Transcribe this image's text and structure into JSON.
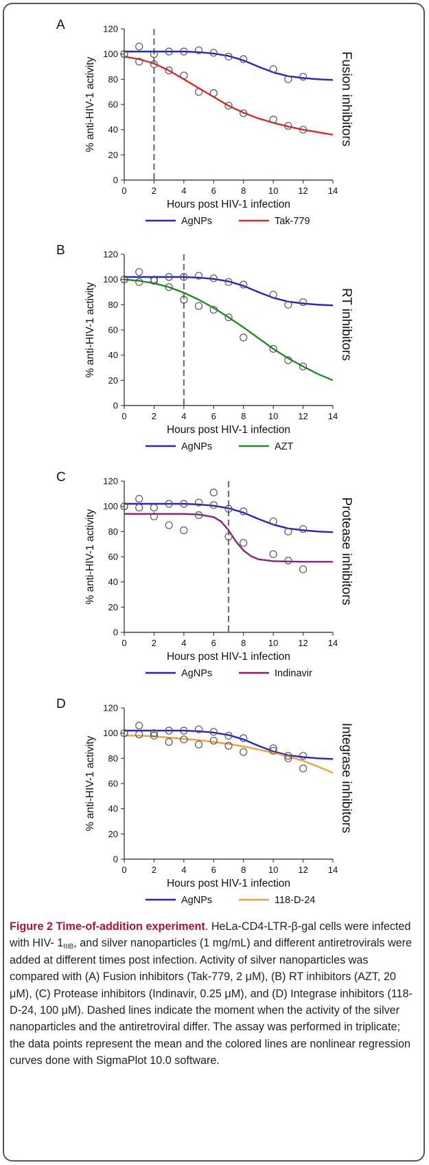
{
  "chart_data": [
    {
      "type": "scatter",
      "panel_letter": "A",
      "side_label": "Fusion inhibitors",
      "xlabel": "Hours post HIV-1 infection",
      "ylabel": "% anti-HIV-1 activity",
      "xlim": [
        0,
        14
      ],
      "ylim": [
        0,
        120
      ],
      "xticks": [
        0,
        2,
        4,
        6,
        8,
        10,
        12,
        14
      ],
      "yticks": [
        0,
        20,
        40,
        60,
        80,
        100,
        120
      ],
      "dashed_line_x": 2,
      "legend_position": "bottom",
      "series": [
        {
          "name": "AgNPs",
          "color": "#2323c8",
          "x": [
            0,
            1,
            2,
            3,
            4,
            5,
            6,
            7,
            8,
            10,
            11,
            12
          ],
          "y": [
            100,
            106,
            100,
            102,
            102,
            103,
            101,
            98,
            96,
            88,
            80,
            82
          ],
          "curve_x": [
            0,
            2,
            4,
            5,
            6,
            7,
            8,
            9,
            10,
            11,
            12,
            13,
            14
          ],
          "curve_y": [
            102,
            102,
            102,
            101.5,
            100.5,
            98.5,
            95,
            90,
            85.5,
            82.5,
            81,
            80,
            79.5
          ]
        },
        {
          "name": "Tak-779",
          "color": "#dc2828",
          "x": [
            0,
            1,
            2,
            3,
            4,
            5,
            6,
            7,
            8,
            10,
            11,
            12
          ],
          "y": [
            100,
            94,
            92,
            87,
            83,
            70,
            69,
            59,
            53,
            48,
            43,
            40
          ],
          "curve_x": [
            0,
            1,
            2,
            3,
            4,
            5,
            6,
            7,
            8,
            9,
            10,
            11,
            12,
            13,
            14
          ],
          "curve_y": [
            98,
            96,
            92.5,
            87,
            80,
            73,
            66,
            59,
            53.5,
            49,
            45.5,
            42.5,
            40,
            38,
            36
          ]
        }
      ]
    },
    {
      "type": "scatter",
      "panel_letter": "B",
      "side_label": "RT inhibitors",
      "xlabel": "Hours post HIV-1 infection",
      "ylabel": "% anti-HIV-1 activity",
      "xlim": [
        0,
        14
      ],
      "ylim": [
        0,
        120
      ],
      "xticks": [
        0,
        2,
        4,
        6,
        8,
        10,
        12,
        14
      ],
      "yticks": [
        0,
        20,
        40,
        60,
        80,
        100,
        120
      ],
      "dashed_line_x": 4,
      "legend_position": "bottom",
      "series": [
        {
          "name": "AgNPs",
          "color": "#2323c8",
          "x": [
            0,
            1,
            2,
            3,
            4,
            5,
            6,
            7,
            8,
            10,
            11,
            12
          ],
          "y": [
            100,
            106,
            100,
            102,
            102,
            103,
            101,
            98,
            96,
            88,
            80,
            82
          ],
          "curve_x": [
            0,
            2,
            4,
            5,
            6,
            7,
            8,
            9,
            10,
            11,
            12,
            13,
            14
          ],
          "curve_y": [
            102,
            102,
            102,
            101.5,
            100.5,
            98.5,
            95,
            90,
            85.5,
            82.5,
            81,
            80,
            79.5
          ]
        },
        {
          "name": "AZT",
          "color": "#1e8c23",
          "x": [
            0,
            1,
            2,
            3,
            4,
            5,
            6,
            7,
            8,
            10,
            11,
            12
          ],
          "y": [
            100,
            98,
            99,
            94,
            84,
            79,
            76,
            70,
            54,
            45,
            36,
            31
          ],
          "curve_x": [
            0,
            1,
            2,
            3,
            4,
            5,
            6,
            7,
            8,
            9,
            10,
            11,
            12,
            13,
            14
          ],
          "curve_y": [
            100,
            99,
            97,
            94,
            89.5,
            84,
            77.5,
            70,
            62,
            53.5,
            45,
            37.5,
            31,
            25,
            20
          ]
        }
      ]
    },
    {
      "type": "scatter",
      "panel_letter": "C",
      "side_label": "Protease inhibitors",
      "xlabel": "Hours post HIV-1 infection",
      "ylabel": "% anti-HIV-1 activity",
      "xlim": [
        0,
        14
      ],
      "ylim": [
        0,
        120
      ],
      "xticks": [
        0,
        2,
        4,
        6,
        8,
        10,
        12,
        14
      ],
      "yticks": [
        0,
        20,
        40,
        60,
        80,
        100,
        120
      ],
      "dashed_line_x": 7,
      "legend_position": "bottom",
      "series": [
        {
          "name": "AgNPs",
          "color": "#2323c8",
          "x": [
            0,
            1,
            2,
            3,
            4,
            5,
            6,
            7,
            8,
            10,
            11,
            12
          ],
          "y": [
            100,
            106,
            99,
            102,
            102,
            103,
            101,
            98,
            96,
            88,
            80,
            82
          ],
          "curve_x": [
            0,
            2,
            4,
            5,
            6,
            7,
            8,
            9,
            10,
            11,
            12,
            13,
            14
          ],
          "curve_y": [
            102,
            102,
            102,
            101.5,
            100.5,
            98.5,
            95,
            90,
            85.5,
            82.5,
            81,
            80,
            79.5
          ]
        },
        {
          "name": "Indinavir",
          "color": "#8c1e78",
          "x": [
            0,
            1,
            2,
            3,
            4,
            5,
            6,
            7,
            8,
            10,
            11,
            12
          ],
          "y": [
            100,
            99,
            92,
            85,
            81,
            93,
            111,
            76,
            71,
            62,
            57,
            50
          ],
          "curve_x": [
            0,
            2,
            4,
            5,
            6,
            6.5,
            7,
            7.5,
            8,
            8.5,
            9,
            10,
            12,
            14
          ],
          "curve_y": [
            94,
            94,
            94,
            93.5,
            91.5,
            88,
            81,
            72,
            65,
            60.5,
            58,
            56.5,
            56,
            56
          ]
        }
      ]
    },
    {
      "type": "scatter",
      "panel_letter": "D",
      "side_label": "Integrase inhibitors",
      "xlabel": "Hours post HIV-1 infection",
      "ylabel": "% anti-HIV-1 activity",
      "xlim": [
        0,
        14
      ],
      "ylim": [
        0,
        120
      ],
      "xticks": [
        0,
        2,
        4,
        6,
        8,
        10,
        12,
        14
      ],
      "yticks": [
        0,
        20,
        40,
        60,
        80,
        100,
        120
      ],
      "dashed_line_x": null,
      "legend_position": "bottom",
      "series": [
        {
          "name": "AgNPs",
          "color": "#2323c8",
          "x": [
            0,
            1,
            2,
            3,
            4,
            5,
            6,
            7,
            8,
            10,
            11,
            12
          ],
          "y": [
            100,
            106,
            100,
            102,
            102,
            103,
            101,
            98,
            96,
            88,
            80,
            82
          ],
          "curve_x": [
            0,
            2,
            4,
            5,
            6,
            7,
            8,
            9,
            10,
            11,
            12,
            13,
            14
          ],
          "curve_y": [
            102,
            102,
            102,
            101.5,
            100.5,
            98.5,
            95,
            90,
            85.5,
            82.5,
            81,
            80,
            79.5
          ]
        },
        {
          "name": "118-D-24",
          "color": "#f0a03c",
          "x": [
            0,
            1,
            2,
            3,
            4,
            5,
            6,
            7,
            8,
            10,
            11,
            12
          ],
          "y": [
            100,
            99,
            98,
            93,
            95,
            91,
            94,
            90,
            85,
            86,
            82,
            72
          ],
          "curve_x": [
            0,
            1,
            2,
            3,
            4,
            5,
            6,
            7,
            8,
            9,
            10,
            11,
            12,
            13,
            14
          ],
          "curve_y": [
            98,
            98,
            97.5,
            96.5,
            95.5,
            94.5,
            93,
            91.5,
            89.5,
            87,
            84.5,
            81.5,
            78,
            73.5,
            68.5
          ]
        }
      ]
    }
  ],
  "caption": {
    "title": "Figure 2 Time-of-addition experiment",
    "text_1": ". HeLa-CD4-LTR-β-gal cells were infected with HIV- 1",
    "sub": "IIIB",
    "text_2": ", and silver nanoparticles (1 mg/mL) and different antiretrovirals were added at different times post infection. Activity of silver nanoparticles was compared with (A) Fusion inhibitors (Tak-779, 2 μM), (B) RT inhibitors (AZT, 20 μM), (C) Protease inhibitors (Indinavir, 0.25 μM), and (D) Integrase inhibitors (118-D-24, 100 μM). Dashed lines indicate the moment when the activity of the silver nanoparticles and the antiretroviral differ. The assay was performed in triplicate; the data points represent the mean and the colored lines are nonlinear regression curves done with SigmaPlot 10.0 software."
  }
}
